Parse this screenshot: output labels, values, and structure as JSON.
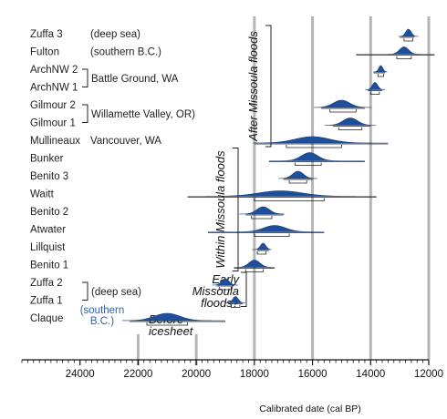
{
  "chart_data": {
    "type": "range_plot",
    "title": "",
    "xlabel": "Calibrated date (cal BP)",
    "x_axis": {
      "min": 12000,
      "max": 26000,
      "reversed": true,
      "ticks": [
        24000,
        22000,
        20000,
        18000,
        16000,
        14000,
        12000
      ],
      "minor_step": 200
    },
    "reference_lines": [
      12000,
      14000,
      16000,
      18000
    ],
    "short_reference_lines": [
      22000,
      20000
    ],
    "series": [
      {
        "name": "Zuffa 3",
        "peak": 12700,
        "range": [
          12500,
          13000
        ],
        "brk": [
          12550,
          12850
        ],
        "peak_h": 8
      },
      {
        "name": "Fulton",
        "peak": 12850,
        "range": [
          11800,
          14500
        ],
        "brk": [
          12600,
          13100
        ],
        "peak_h": 8
      },
      {
        "name": "ArchNW 2",
        "peak": 13650,
        "range": [
          13500,
          13900
        ],
        "brk": [
          13550,
          13750
        ],
        "peak_h": 7
      },
      {
        "name": "ArchNW 1",
        "peak": 13850,
        "range": [
          13600,
          14100
        ],
        "brk": [
          13700,
          14000
        ],
        "peak_h": 8
      },
      {
        "name": "Gilmour 2",
        "peak": 15000,
        "range": [
          14200,
          15700
        ],
        "brk": [
          14500,
          15400
        ],
        "peak_h": 8
      },
      {
        "name": "Gilmour 1",
        "peak": 14700,
        "range": [
          14000,
          15300
        ],
        "brk": [
          14300,
          15100
        ],
        "peak_h": 8
      },
      {
        "name": "Mullineaux",
        "peak": 16000,
        "range": [
          13400,
          18000
        ],
        "brk": [
          15000,
          16900
        ],
        "peak_h": 7
      },
      {
        "name": "Bunker",
        "peak": 16100,
        "range": [
          14200,
          17500
        ],
        "brk": [
          15700,
          16600
        ],
        "peak_h": 9
      },
      {
        "name": "Benito 3",
        "peak": 16500,
        "range": [
          16000,
          17000
        ],
        "brk": [
          16200,
          16800
        ],
        "peak_h": 8
      },
      {
        "name": "Waitt",
        "peak": 17100,
        "range": [
          13800,
          20300
        ],
        "brk": [
          15600,
          18000
        ],
        "peak_h": 6
      },
      {
        "name": "Benito 2",
        "peak": 17700,
        "range": [
          17000,
          18300
        ],
        "brk": [
          17400,
          18100
        ],
        "peak_h": 8
      },
      {
        "name": "Atwater",
        "peak": 17300,
        "range": [
          15600,
          19600
        ],
        "brk": [
          16800,
          18000
        ],
        "peak_h": 7
      },
      {
        "name": "Lillquist",
        "peak": 17700,
        "range": [
          17500,
          17900
        ],
        "brk": [
          17600,
          17900
        ],
        "peak_h": 7
      },
      {
        "name": "Benito 1",
        "peak": 18000,
        "range": [
          17300,
          18700
        ],
        "brk": [
          17700,
          18300
        ],
        "peak_h": 8
      },
      {
        "name": "Zuffa 2",
        "peak": 19000,
        "range": [
          18700,
          19300
        ],
        "brk": [
          18800,
          19200
        ],
        "peak_h": 7
      },
      {
        "name": "Zuffa 1",
        "peak": 18650,
        "range": [
          18400,
          18900
        ],
        "brk": [
          18500,
          18800
        ],
        "peak_h": 7
      },
      {
        "name": "Claque",
        "peak": 21000,
        "range": [
          19000,
          22300
        ],
        "brk": [
          20300,
          21700
        ],
        "peak_h": 8
      }
    ],
    "locations": [
      {
        "text": "(deep sea)",
        "row": 0,
        "bracket": false,
        "blue": false
      },
      {
        "text": "(southern B.C.)",
        "row": 1,
        "bracket": false,
        "blue": false
      },
      {
        "text": "Battle Ground, WA",
        "rows": [
          2,
          3
        ],
        "bracket": true,
        "blue": false
      },
      {
        "text": "Willamette Valley, OR)",
        "rows": [
          4,
          5
        ],
        "bracket": true,
        "blue": false
      },
      {
        "text": "Vancouver, WA",
        "row": 6,
        "bracket": false,
        "blue": false
      },
      {
        "text": "(deep sea)",
        "rows": [
          14,
          15
        ],
        "bracket": true,
        "blue": false
      },
      {
        "text_lines": [
          "(southern",
          "B.C.)"
        ],
        "row": 16,
        "bracket": false,
        "blue": true
      }
    ],
    "periods": [
      {
        "text": "After Missoula floods",
        "orientation": "vertical",
        "rows": [
          0,
          6
        ]
      },
      {
        "text": "Within Missoula floods",
        "orientation": "vertical",
        "rows": [
          7,
          13
        ]
      },
      {
        "text_lines": [
          "Early",
          "Missoula",
          "floods?"
        ],
        "orientation": "horizontal",
        "rows": [
          14,
          15
        ]
      },
      {
        "text_lines": [
          "Before",
          "icesheet"
        ],
        "orientation": "horizontal",
        "row": 16
      }
    ]
  }
}
